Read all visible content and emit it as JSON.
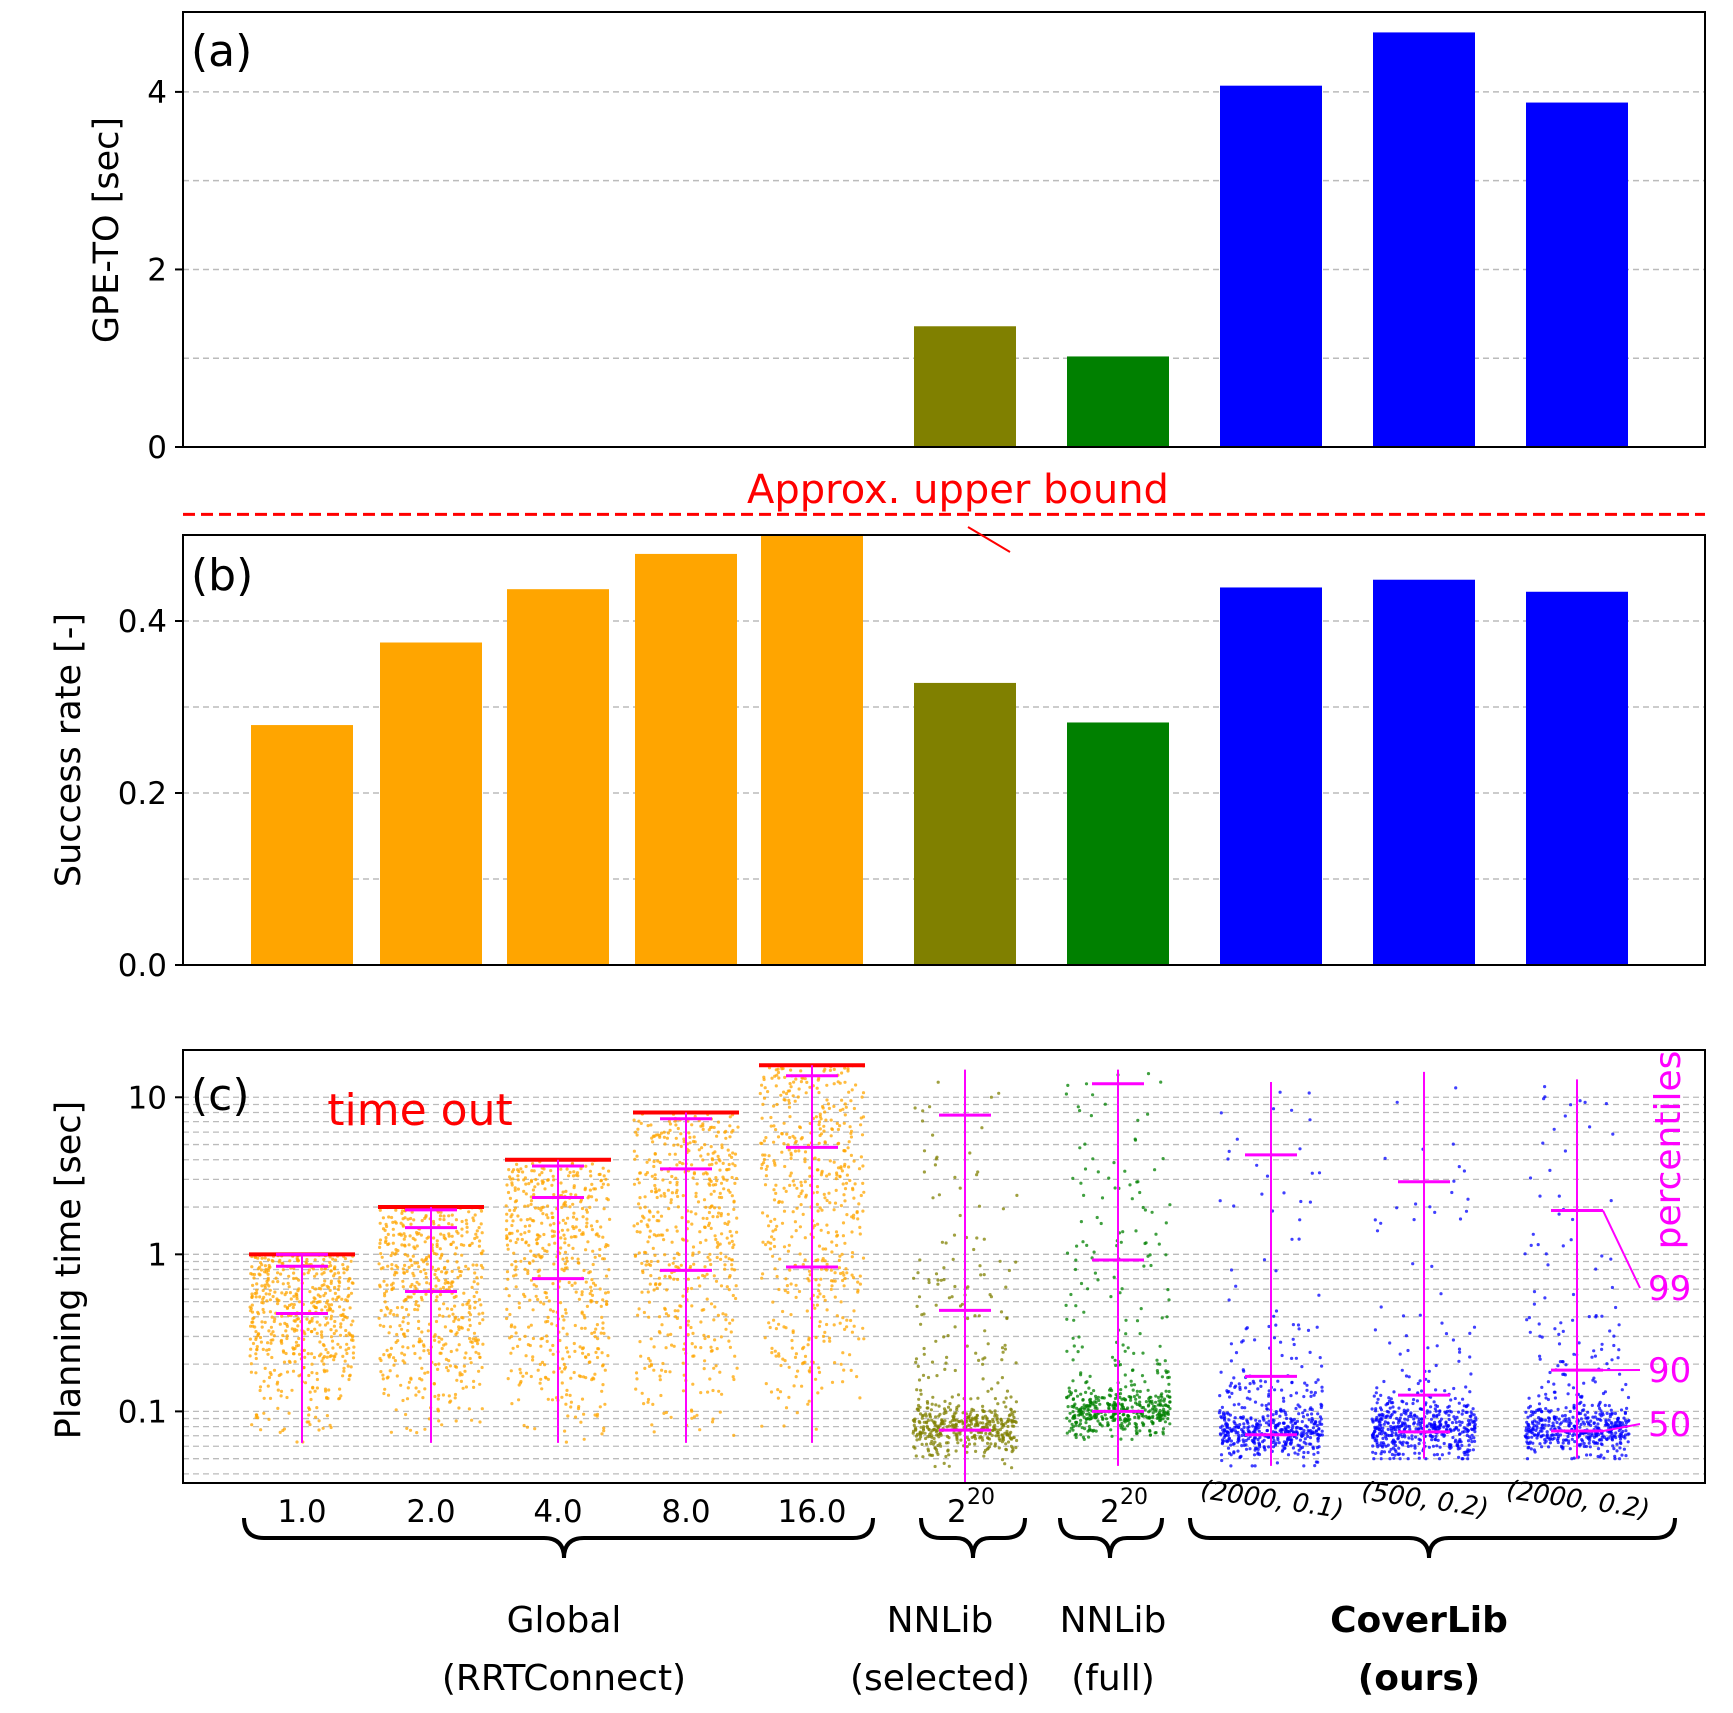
{
  "chart_data": [
    {
      "panel": "(a)",
      "type": "bar",
      "ylabel": "GPE-TO [sec]",
      "ylim": [
        0,
        4.9
      ],
      "yticks": [
        0,
        2,
        4
      ],
      "ytick_labels": [
        "0",
        "2",
        "4"
      ],
      "categories": [
        "1.0",
        "2.0",
        "4.0",
        "8.0",
        "16.0",
        "2^20 (selected)",
        "2^20 (full)",
        "(2000, 0.1)",
        "(500, 0.2)",
        "(2000, 0.2)"
      ],
      "values": [
        null,
        null,
        null,
        null,
        null,
        1.36,
        1.02,
        4.07,
        4.67,
        3.88
      ],
      "colors": [
        "#ffa500",
        "#ffa500",
        "#ffa500",
        "#ffa500",
        "#ffa500",
        "#808000",
        "#008000",
        "#0000ff",
        "#0000ff",
        "#0000ff"
      ],
      "grid": true
    },
    {
      "panel": "(b)",
      "type": "bar",
      "ylabel": "Success rate [-]",
      "ylim": [
        0,
        0.5
      ],
      "yticks": [
        0.0,
        0.2,
        0.4
      ],
      "ytick_labels": [
        "0.0",
        "0.2",
        "0.4"
      ],
      "categories": [
        "1.0",
        "2.0",
        "4.0",
        "8.0",
        "16.0",
        "2^20 (selected)",
        "2^20 (full)",
        "(2000, 0.1)",
        "(500, 0.2)",
        "(2000, 0.2)"
      ],
      "values": [
        0.279,
        0.375,
        0.437,
        0.478,
        0.5,
        0.328,
        0.282,
        0.439,
        0.448,
        0.434
      ],
      "colors": [
        "#ffa500",
        "#ffa500",
        "#ffa500",
        "#ffa500",
        "#ffa500",
        "#808000",
        "#008000",
        "#0000ff",
        "#0000ff",
        "#0000ff"
      ],
      "reference_line": {
        "value": 0.524,
        "label": "Approx. upper bound",
        "color": "#ff0000",
        "style": "dashed"
      },
      "grid": true
    },
    {
      "panel": "(c)",
      "type": "scatter",
      "ylabel": "Planning time [sec]",
      "yscale": "log",
      "ylim": [
        0.035,
        20
      ],
      "yticks": [
        0.1,
        1,
        10
      ],
      "ytick_labels": [
        "0.1",
        "1",
        "10"
      ],
      "timeout_label": "time out",
      "percentile_label": "percentiles",
      "percentile_tags": [
        "99",
        "90",
        "50"
      ],
      "groups": [
        {
          "name": "1.0",
          "color": "#ffa500",
          "timeout": 1.0,
          "min": 0.063,
          "p50": 0.42,
          "p90": 0.84,
          "p99": 1.0,
          "max": 1.0
        },
        {
          "name": "2.0",
          "color": "#ffa500",
          "timeout": 2.0,
          "min": 0.063,
          "p50": 0.58,
          "p90": 1.48,
          "p99": 1.92,
          "max": 2.0
        },
        {
          "name": "4.0",
          "color": "#ffa500",
          "timeout": 4.0,
          "min": 0.063,
          "p50": 0.7,
          "p90": 2.3,
          "p99": 3.65,
          "max": 4.0
        },
        {
          "name": "8.0",
          "color": "#ffa500",
          "timeout": 8.0,
          "min": 0.063,
          "p50": 0.79,
          "p90": 3.5,
          "p99": 7.3,
          "max": 8.0
        },
        {
          "name": "16.0",
          "color": "#ffa500",
          "timeout": 16.0,
          "min": 0.063,
          "p50": 0.83,
          "p90": 4.8,
          "p99": 13.7,
          "max": 16.0
        },
        {
          "name": "NNLib (selected)",
          "color": "#808000",
          "timeout": null,
          "min": 0.035,
          "p50": 0.076,
          "p90": 0.44,
          "p99": 7.7,
          "max": 15.0
        },
        {
          "name": "NNLib (full)",
          "color": "#008000",
          "timeout": null,
          "min": 0.045,
          "p50": 0.1,
          "p90": 0.92,
          "p99": 12.2,
          "max": 15.0
        },
        {
          "name": "(2000, 0.1)",
          "color": "#0000ff",
          "timeout": null,
          "min": 0.045,
          "p50": 0.071,
          "p90": 0.167,
          "p99": 4.3,
          "max": 12.5
        },
        {
          "name": "(500, 0.2)",
          "color": "#0000ff",
          "timeout": null,
          "min": 0.05,
          "p50": 0.074,
          "p90": 0.127,
          "p99": 2.9,
          "max": 14.5
        },
        {
          "name": "(2000, 0.2)",
          "color": "#0000ff",
          "timeout": null,
          "min": 0.05,
          "p50": 0.075,
          "p90": 0.183,
          "p99": 1.9,
          "max": 13.0
        }
      ],
      "grid": true
    }
  ],
  "xaxis": {
    "categories": [
      {
        "label": "1.0"
      },
      {
        "label": "2.0"
      },
      {
        "label": "4.0"
      },
      {
        "label": "8.0"
      },
      {
        "label": "16.0"
      },
      {
        "base": "2",
        "exp": "20"
      },
      {
        "base": "2",
        "exp": "20"
      },
      {
        "label": "(2000, 0.1)"
      },
      {
        "label": "(500, 0.2)"
      },
      {
        "label": "(2000, 0.2)"
      }
    ],
    "groups": [
      {
        "line1": "Global",
        "line2": "(RRTConnect)"
      },
      {
        "line1": "NNLib",
        "line2": "(selected)"
      },
      {
        "line1": "NNLib",
        "line2": "(full)"
      },
      {
        "line1": "CoverLib",
        "line2": "(ours)"
      }
    ]
  }
}
